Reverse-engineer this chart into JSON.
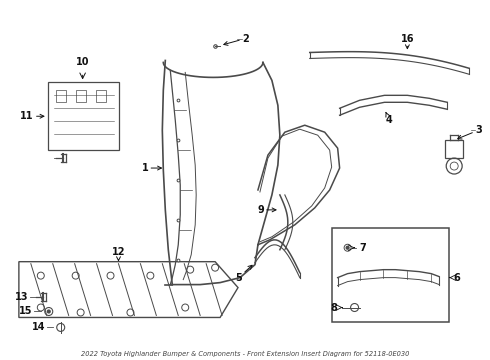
{
  "title": "2022 Toyota Highlander Bumper & Components - Front Extension Insert Diagram for 52118-0E030",
  "bg_color": "#ffffff",
  "line_color": "#4a4a4a",
  "text_color": "#111111",
  "label_fontsize": 7,
  "fig_width": 4.9,
  "fig_height": 3.6,
  "dpi": 100
}
